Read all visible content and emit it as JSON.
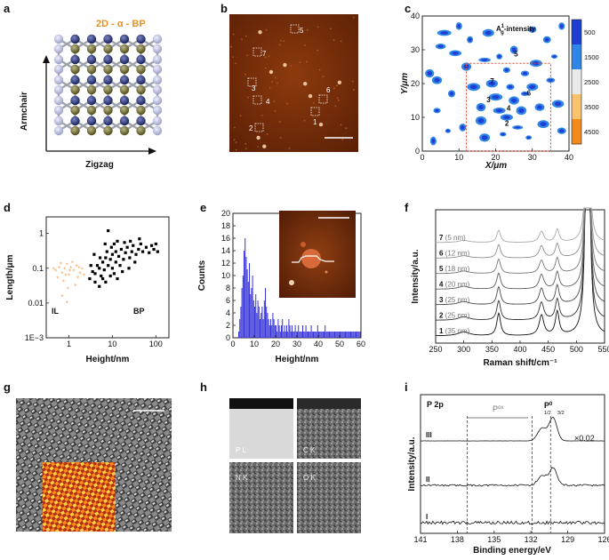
{
  "panel_labels": [
    "a",
    "b",
    "c",
    "d",
    "e",
    "f",
    "g",
    "h",
    "i"
  ],
  "panel_a": {
    "title": "2D - α - BP",
    "axis_vertical": "Armchair",
    "axis_horizontal": "Zigzag"
  },
  "panel_b": {
    "flake_labels": [
      "5",
      "7",
      "3",
      "4",
      "6",
      "1",
      "2"
    ]
  },
  "panel_c": {
    "title_text": "A",
    "title_super": "1",
    "title_sub": "g",
    "title_suffix": "-intensity",
    "flake_labels": [
      "5",
      "7",
      "3",
      "4",
      "6",
      "2"
    ]
  },
  "panel_h": {
    "tile_labels": [
      "P L",
      "C K",
      "N K",
      "O K"
    ]
  },
  "chart_data": [
    {
      "panel": "c",
      "type": "heatmap",
      "xlabel": "X/μm",
      "ylabel": "Y/μm",
      "xlim": [
        0,
        40
      ],
      "ylim": [
        0,
        40
      ],
      "xticks": [
        0,
        10,
        20,
        30,
        40
      ],
      "yticks": [
        0,
        10,
        20,
        30,
        40
      ],
      "colorbar_ticks": [
        "500",
        "1500",
        "2500",
        "3500",
        "4500"
      ],
      "colorbar_colors": [
        "#1f3fd4",
        "#2f86e6",
        "#e9e9e9",
        "#f8c36b",
        "#f28a1a"
      ],
      "region_box": {
        "x": [
          12,
          35
        ],
        "y": [
          0,
          26
        ]
      },
      "spots": [
        {
          "x": 2,
          "y": 23
        },
        {
          "x": 4,
          "y": 21
        },
        {
          "x": 5,
          "y": 31
        },
        {
          "x": 7,
          "y": 6
        },
        {
          "x": 6,
          "y": 35
        },
        {
          "x": 10,
          "y": 37
        },
        {
          "x": 12,
          "y": 25
        },
        {
          "x": 13,
          "y": 33
        },
        {
          "x": 9,
          "y": 29
        },
        {
          "x": 4,
          "y": 12
        },
        {
          "x": 8,
          "y": 17
        },
        {
          "x": 14,
          "y": 19
        },
        {
          "x": 16,
          "y": 13
        },
        {
          "x": 16,
          "y": 9
        },
        {
          "x": 17,
          "y": 27
        },
        {
          "x": 17,
          "y": 4
        },
        {
          "x": 18,
          "y": 35
        },
        {
          "x": 19,
          "y": 20
        },
        {
          "x": 20,
          "y": 16
        },
        {
          "x": 21,
          "y": 12
        },
        {
          "x": 22,
          "y": 5
        },
        {
          "x": 23,
          "y": 10
        },
        {
          "x": 23,
          "y": 24
        },
        {
          "x": 24,
          "y": 19
        },
        {
          "x": 25,
          "y": 15
        },
        {
          "x": 25,
          "y": 30
        },
        {
          "x": 26,
          "y": 7
        },
        {
          "x": 27,
          "y": 12
        },
        {
          "x": 28,
          "y": 17
        },
        {
          "x": 28,
          "y": 23
        },
        {
          "x": 29,
          "y": 4
        },
        {
          "x": 30,
          "y": 19
        },
        {
          "x": 31,
          "y": 26
        },
        {
          "x": 32,
          "y": 13
        },
        {
          "x": 33,
          "y": 8
        },
        {
          "x": 35,
          "y": 21
        },
        {
          "x": 36,
          "y": 28
        },
        {
          "x": 37,
          "y": 14
        },
        {
          "x": 38,
          "y": 6
        },
        {
          "x": 34,
          "y": 33
        },
        {
          "x": 3,
          "y": 3
        },
        {
          "x": 11,
          "y": 7
        },
        {
          "x": 30,
          "y": 36
        },
        {
          "x": 38,
          "y": 37
        },
        {
          "x": 21,
          "y": 28
        }
      ]
    },
    {
      "panel": "d",
      "type": "scatter",
      "xlabel": "Height/nm",
      "ylabel": "Length/μm",
      "xscale": "log",
      "yscale": "log",
      "xlim": [
        0.3,
        200
      ],
      "ylim": [
        0.001,
        3
      ],
      "xtick_labels": [
        "1",
        "10",
        "100"
      ],
      "ytick_labels": [
        "1E−3",
        "0.01",
        "0.1",
        "1"
      ],
      "annotations": [
        "IL",
        "BP"
      ],
      "series": [
        {
          "name": "IL",
          "color": "#f5a25a",
          "points": [
            [
              0.5,
              0.08
            ],
            [
              0.6,
              0.1
            ],
            [
              0.7,
              0.07
            ],
            [
              0.8,
              0.09
            ],
            [
              0.9,
              0.12
            ],
            [
              1.0,
              0.06
            ],
            [
              1.1,
              0.1
            ],
            [
              1.3,
              0.08
            ],
            [
              1.5,
              0.11
            ],
            [
              1.8,
              0.07
            ],
            [
              2.0,
              0.09
            ],
            [
              0.55,
              0.05
            ],
            [
              0.65,
              0.13
            ],
            [
              0.75,
              0.04
            ],
            [
              0.85,
              0.06
            ],
            [
              1.2,
              0.14
            ],
            [
              1.6,
              0.05
            ],
            [
              2.2,
              0.06
            ],
            [
              0.45,
              0.09
            ],
            [
              0.95,
              0.025
            ],
            [
              1.4,
              0.03
            ],
            [
              0.7,
              0.015
            ],
            [
              0.9,
              0.01
            ],
            [
              1.05,
              0.08
            ],
            [
              1.7,
              0.1
            ]
          ]
        },
        {
          "name": "BP",
          "color": "#000000",
          "points": [
            [
              3,
              0.05
            ],
            [
              3.5,
              0.08
            ],
            [
              4,
              0.07
            ],
            [
              4.5,
              0.12
            ],
            [
              5,
              0.1
            ],
            [
              5.5,
              0.06
            ],
            [
              6,
              0.15
            ],
            [
              6.5,
              0.09
            ],
            [
              7,
              0.2
            ],
            [
              8,
              0.12
            ],
            [
              8,
              1.2
            ],
            [
              9,
              0.18
            ],
            [
              10,
              0.1
            ],
            [
              10,
              0.25
            ],
            [
              12,
              0.15
            ],
            [
              12,
              0.3
            ],
            [
              14,
              0.22
            ],
            [
              15,
              0.12
            ],
            [
              16,
              0.35
            ],
            [
              18,
              0.18
            ],
            [
              20,
              0.28
            ],
            [
              22,
              0.4
            ],
            [
              25,
              0.2
            ],
            [
              28,
              0.3
            ],
            [
              30,
              0.45
            ],
            [
              35,
              0.25
            ],
            [
              40,
              0.35
            ],
            [
              45,
              0.5
            ],
            [
              50,
              0.3
            ],
            [
              60,
              0.4
            ],
            [
              70,
              0.28
            ],
            [
              80,
              0.45
            ],
            [
              90,
              0.35
            ],
            [
              100,
              0.5
            ],
            [
              110,
              0.3
            ],
            [
              4,
              0.04
            ],
            [
              5,
              0.03
            ],
            [
              6,
              0.05
            ],
            [
              7,
              0.04
            ],
            [
              9,
              0.06
            ],
            [
              11,
              0.07
            ],
            [
              13,
              0.05
            ],
            [
              3.2,
              0.12
            ],
            [
              5.2,
              0.2
            ],
            [
              7.5,
              0.3
            ],
            [
              9.5,
              0.4
            ],
            [
              11,
              0.5
            ],
            [
              13,
              0.6
            ],
            [
              17,
              0.08
            ],
            [
              24,
              0.1
            ],
            [
              3.8,
              0.25
            ],
            [
              6.8,
              0.5
            ],
            [
              19,
              0.55
            ],
            [
              26,
              0.6
            ],
            [
              33,
              0.15
            ],
            [
              42,
              0.7
            ]
          ]
        }
      ]
    },
    {
      "panel": "e",
      "type": "bar",
      "xlabel": "Height/nm",
      "ylabel": "Counts",
      "xlim": [
        0,
        60
      ],
      "ylim": [
        0,
        20
      ],
      "xticks": [
        0,
        10,
        20,
        30,
        40,
        50,
        60
      ],
      "yticks": [
        0,
        2,
        4,
        6,
        8,
        10,
        12,
        14,
        16,
        18,
        20
      ],
      "bin_width": 0.5,
      "values": [
        0,
        0,
        0,
        0,
        0,
        1,
        3,
        5,
        8,
        10,
        14,
        16,
        13,
        11,
        9,
        12,
        7,
        8,
        10,
        6,
        5,
        7,
        4,
        6,
        5,
        3,
        4,
        5,
        3,
        6,
        8,
        5,
        4,
        3,
        2,
        3,
        2,
        4,
        3,
        2,
        2,
        1,
        3,
        2,
        1,
        2,
        3,
        1,
        2,
        1,
        2,
        1,
        3,
        2,
        1,
        2,
        1,
        1,
        2,
        1,
        1,
        2,
        1,
        1,
        1,
        2,
        1,
        1,
        2,
        1,
        1,
        1,
        1,
        2,
        1,
        1,
        1,
        1,
        1,
        2,
        1,
        1,
        1,
        1,
        1,
        1,
        2,
        1,
        1,
        1,
        1,
        1,
        1,
        1,
        1,
        1,
        1,
        1,
        1,
        1,
        1,
        1,
        1,
        1,
        1,
        1,
        1,
        1,
        1,
        1,
        1,
        1,
        1,
        1,
        1,
        1,
        1,
        1,
        1,
        1
      ]
    },
    {
      "panel": "f",
      "type": "line",
      "xlabel": "Raman shift/cm⁻¹",
      "ylabel": "Intensity/a.u.",
      "xlim": [
        250,
        550
      ],
      "xticks": [
        250,
        300,
        350,
        400,
        450,
        500,
        550
      ],
      "peaks": [
        {
          "position": 300,
          "height": 0.18,
          "width": 12
        },
        {
          "position": 362,
          "height": 1.0,
          "width": 4
        },
        {
          "position": 438,
          "height": 0.9,
          "width": 5
        },
        {
          "position": 466,
          "height": 1.05,
          "width": 4
        },
        {
          "position": 520,
          "height": 20,
          "width": 3
        }
      ],
      "series": [
        {
          "id": "1",
          "name": "35 nm",
          "color": "#111111",
          "scale": 1.0
        },
        {
          "id": "2",
          "name": "25 nm",
          "color": "#333333",
          "scale": 0.75
        },
        {
          "id": "3",
          "name": "25 nm",
          "color": "#4a4a4a",
          "scale": 0.6
        },
        {
          "id": "4",
          "name": "20 nm",
          "color": "#5e5e5e",
          "scale": 0.45
        },
        {
          "id": "5",
          "name": "18 nm",
          "color": "#767676",
          "scale": 0.32
        },
        {
          "id": "6",
          "name": "12 nm",
          "color": "#8e8e8e",
          "scale": 0.22
        },
        {
          "id": "7",
          "name": "5 nm",
          "color": "#a8a8a8",
          "scale": 0.12
        }
      ]
    },
    {
      "panel": "i",
      "type": "line",
      "title": "P 2p",
      "xlabel": "Binding energy/eV",
      "ylabel": "Intensity/a.u.",
      "xlim": [
        141,
        126
      ],
      "xticks": [
        141,
        138,
        135,
        132,
        129,
        126
      ],
      "pox_label": "P",
      "pox_super": "ox",
      "p0_label": "P",
      "p0_super": "0",
      "p0_sub1": "1/2",
      "p0_sub2": "3/2",
      "scale_note": "×0.02",
      "guide_lines": [
        137.2,
        131.9,
        130.4
      ],
      "series": [
        {
          "name": "III",
          "noise": 0.02,
          "peak_scale": 1.0
        },
        {
          "name": "II",
          "noise": 0.2,
          "peak_scale": 0.75
        },
        {
          "name": "I",
          "noise": 0.35,
          "peak_scale": 0.0
        }
      ]
    }
  ]
}
